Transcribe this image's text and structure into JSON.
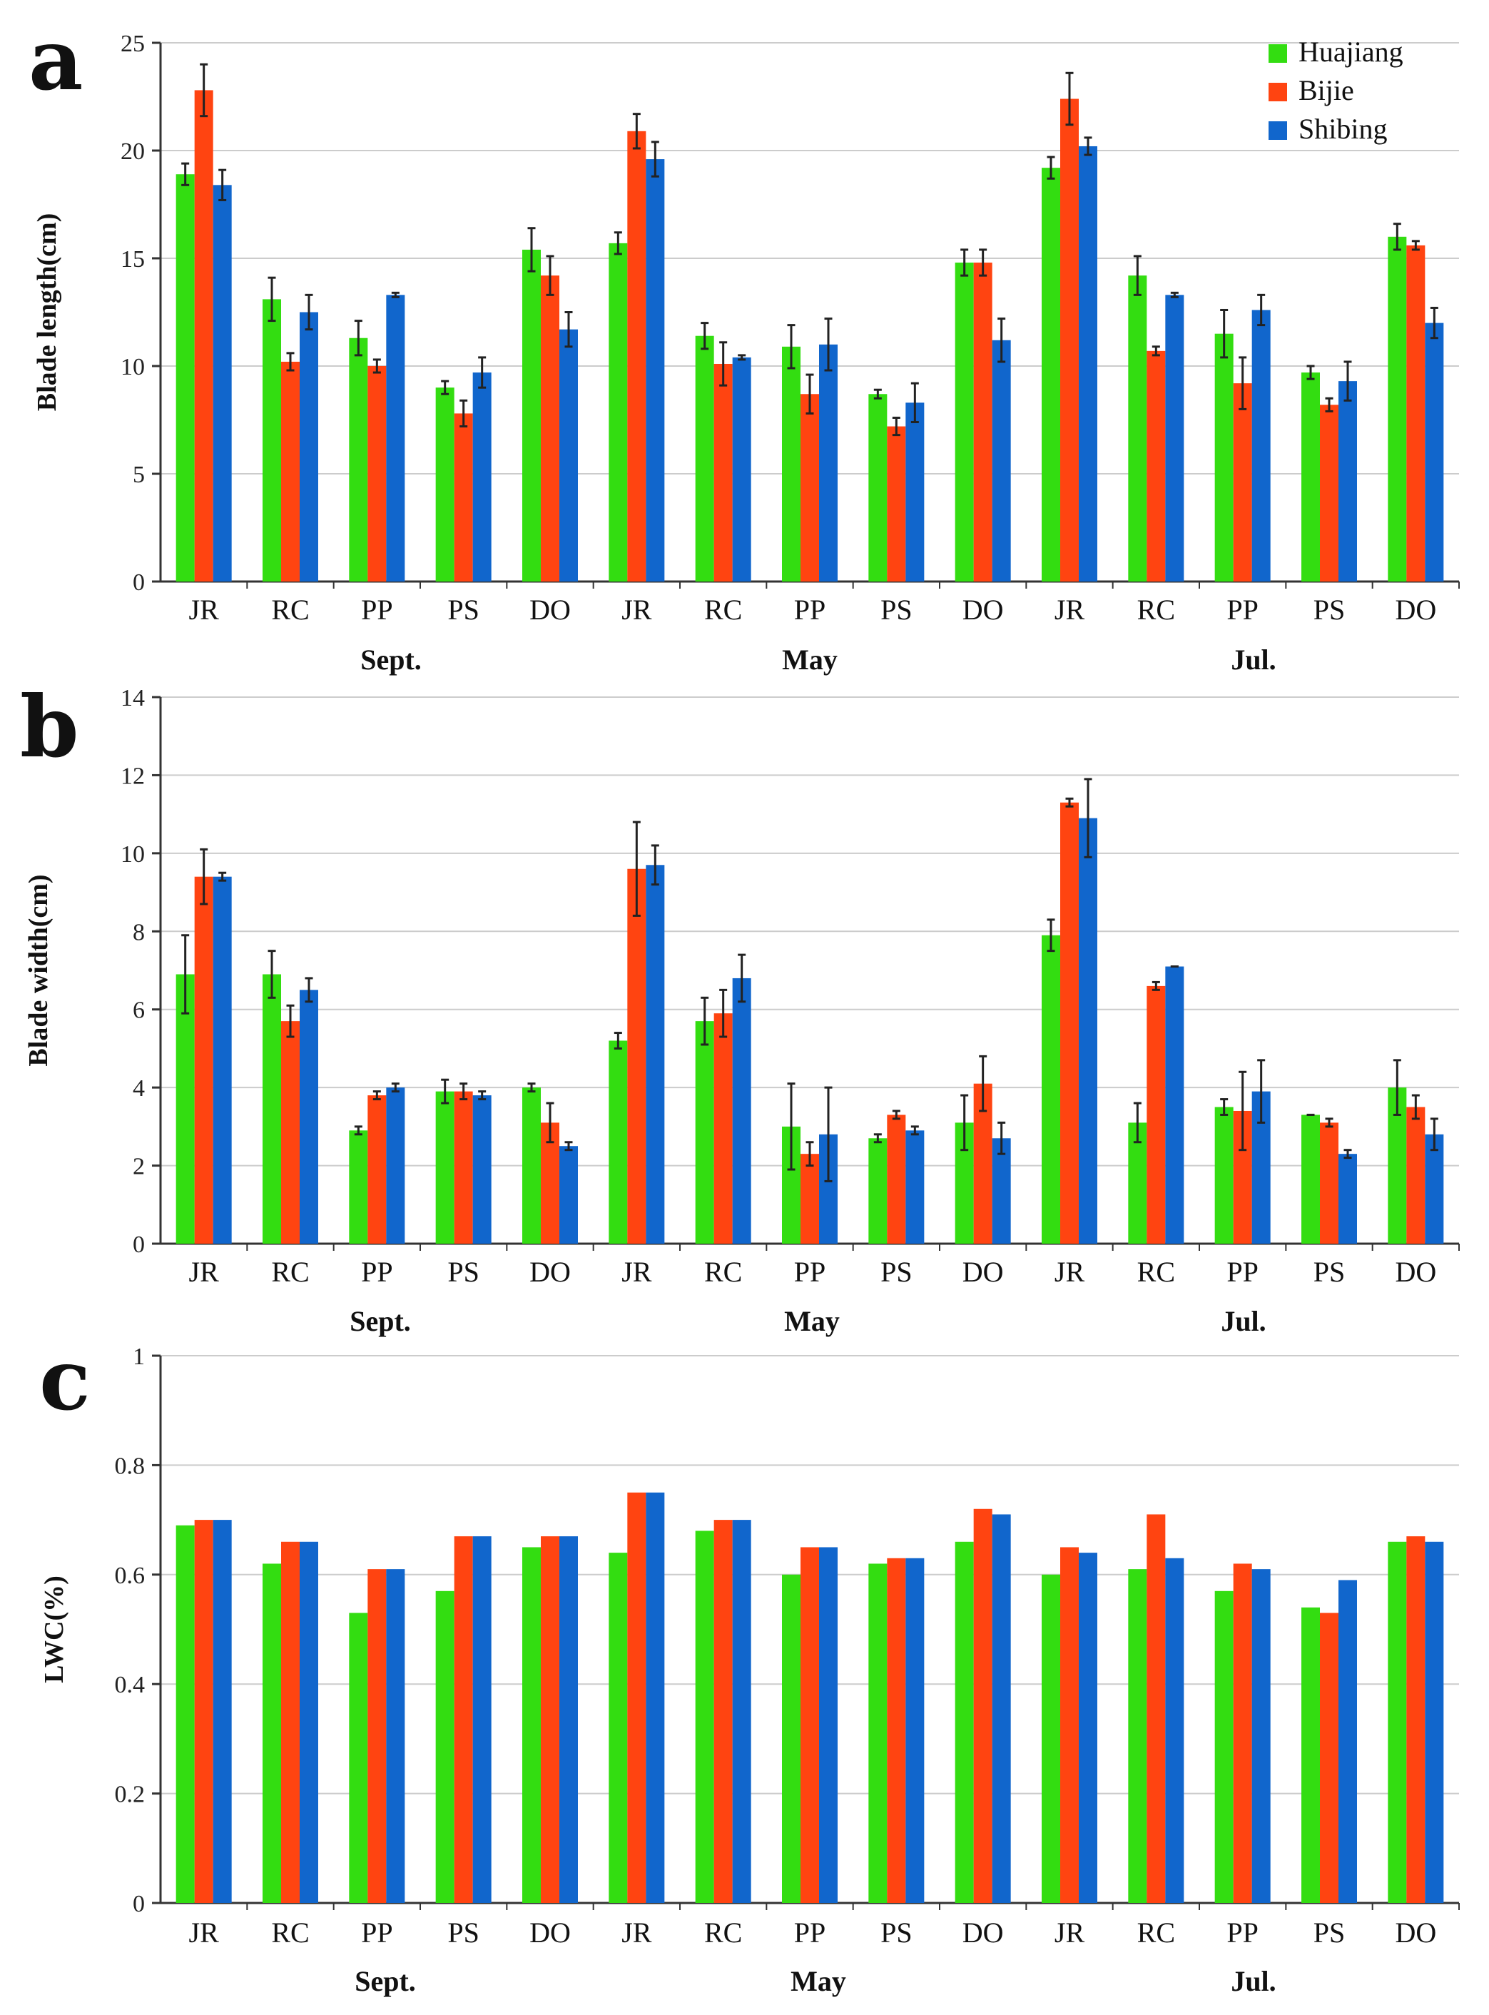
{
  "colors": {
    "Huajiang": "#33dd11",
    "Bijie": "#ff4411",
    "Shibing": "#1166cc"
  },
  "chart_data": [
    {
      "type": "bar",
      "panel": "a",
      "ylabel": "Blade length(cm)",
      "ylim": [
        0,
        25
      ],
      "yticks": [
        0,
        5,
        10,
        15,
        20,
        25
      ],
      "grid": true,
      "legend": "top-right",
      "categories": [
        "JR",
        "RC",
        "PP",
        "PS",
        "DO",
        "JR",
        "RC",
        "PP",
        "PS",
        "DO",
        "JR",
        "RC",
        "PP",
        "PS",
        "DO"
      ],
      "groups": [
        "Sept.",
        "May",
        "Jul."
      ],
      "series": [
        {
          "name": "Huajiang",
          "values": [
            18.9,
            13.1,
            11.3,
            9.0,
            15.4,
            15.7,
            11.4,
            10.9,
            8.7,
            14.8,
            19.2,
            14.2,
            11.5,
            9.7,
            16.0
          ],
          "errors": [
            0.5,
            1.0,
            0.8,
            0.3,
            1.0,
            0.5,
            0.6,
            1.0,
            0.2,
            0.6,
            0.5,
            0.9,
            1.1,
            0.3,
            0.6
          ]
        },
        {
          "name": "Bijie",
          "values": [
            22.8,
            10.2,
            10.0,
            7.8,
            14.2,
            20.9,
            10.1,
            8.7,
            7.2,
            14.8,
            22.4,
            10.7,
            9.2,
            8.2,
            15.6
          ],
          "errors": [
            1.2,
            0.4,
            0.3,
            0.6,
            0.9,
            0.8,
            1.0,
            0.9,
            0.4,
            0.6,
            1.2,
            0.2,
            1.2,
            0.3,
            0.2
          ]
        },
        {
          "name": "Shibing",
          "values": [
            18.4,
            12.5,
            13.3,
            9.7,
            11.7,
            19.6,
            10.4,
            11.0,
            8.3,
            11.2,
            20.2,
            13.3,
            12.6,
            9.3,
            12.0
          ],
          "errors": [
            0.7,
            0.8,
            0.1,
            0.7,
            0.8,
            0.8,
            0.1,
            1.2,
            0.9,
            1.0,
            0.4,
            0.1,
            0.7,
            0.9,
            0.7
          ]
        }
      ]
    },
    {
      "type": "bar",
      "panel": "b",
      "ylabel": "Blade width(cm)",
      "ylim": [
        0,
        14
      ],
      "yticks": [
        0,
        2,
        4,
        6,
        8,
        10,
        12,
        14
      ],
      "grid": true,
      "categories": [
        "JR",
        "RC",
        "PP",
        "PS",
        "DO",
        "JR",
        "RC",
        "PP",
        "PS",
        "DO",
        "JR",
        "RC",
        "PP",
        "PS",
        "DO"
      ],
      "groups": [
        "Sept.",
        "May",
        "Jul."
      ],
      "series": [
        {
          "name": "Huajiang",
          "values": [
            6.9,
            6.9,
            2.9,
            3.9,
            4.0,
            5.2,
            5.7,
            3.0,
            2.7,
            3.1,
            7.9,
            3.1,
            3.5,
            3.3,
            4.0
          ],
          "errors": [
            1.0,
            0.6,
            0.1,
            0.3,
            0.1,
            0.2,
            0.6,
            1.1,
            0.1,
            0.7,
            0.4,
            0.5,
            0.2,
            0.0,
            0.7
          ]
        },
        {
          "name": "Bijie",
          "values": [
            9.4,
            5.7,
            3.8,
            3.9,
            3.1,
            9.6,
            5.9,
            2.3,
            3.3,
            4.1,
            11.3,
            6.6,
            3.4,
            3.1,
            3.5
          ],
          "errors": [
            0.7,
            0.4,
            0.1,
            0.2,
            0.5,
            1.2,
            0.6,
            0.3,
            0.1,
            0.7,
            0.1,
            0.1,
            1.0,
            0.1,
            0.3
          ]
        },
        {
          "name": "Shibing",
          "values": [
            9.4,
            6.5,
            4.0,
            3.8,
            2.5,
            9.7,
            6.8,
            2.8,
            2.9,
            2.7,
            10.9,
            7.1,
            3.9,
            2.3,
            2.8
          ],
          "errors": [
            0.1,
            0.3,
            0.1,
            0.1,
            0.1,
            0.5,
            0.6,
            1.2,
            0.1,
            0.4,
            1.0,
            0.0,
            0.8,
            0.1,
            0.4
          ]
        }
      ]
    },
    {
      "type": "bar",
      "panel": "c",
      "ylabel": "LWC(%)",
      "ylim": [
        0,
        1
      ],
      "yticks": [
        0,
        0.2,
        0.4,
        0.6,
        0.8,
        1
      ],
      "grid": true,
      "categories": [
        "JR",
        "RC",
        "PP",
        "PS",
        "DO",
        "JR",
        "RC",
        "PP",
        "PS",
        "DO",
        "JR",
        "RC",
        "PP",
        "PS",
        "DO"
      ],
      "groups": [
        "Sept.",
        "May",
        "Jul."
      ],
      "series": [
        {
          "name": "Huajiang",
          "values": [
            0.69,
            0.62,
            0.53,
            0.57,
            0.65,
            0.64,
            0.68,
            0.6,
            0.62,
            0.66,
            0.6,
            0.61,
            0.57,
            0.54,
            0.66
          ]
        },
        {
          "name": "Bijie",
          "values": [
            0.7,
            0.66,
            0.61,
            0.67,
            0.67,
            0.75,
            0.7,
            0.65,
            0.63,
            0.72,
            0.65,
            0.71,
            0.62,
            0.53,
            0.67
          ]
        },
        {
          "name": "Shibing",
          "values": [
            0.7,
            0.66,
            0.61,
            0.67,
            0.67,
            0.75,
            0.7,
            0.65,
            0.63,
            0.71,
            0.64,
            0.63,
            0.61,
            0.59,
            0.66
          ]
        }
      ]
    }
  ]
}
